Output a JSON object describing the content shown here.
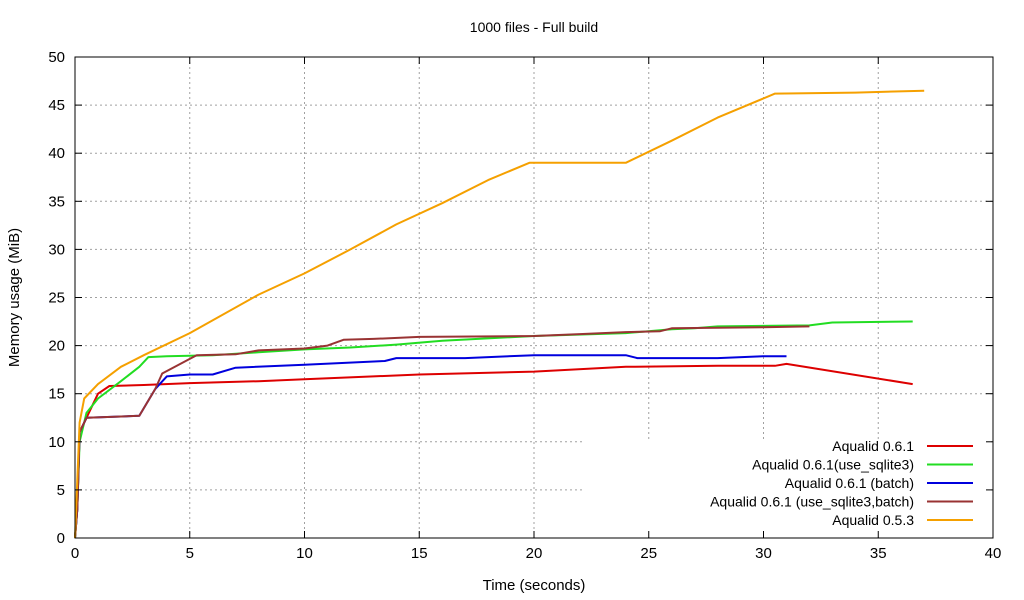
{
  "chart_data": {
    "type": "line",
    "title": "1000 files - Full build",
    "xlabel": "Time (seconds)",
    "ylabel": "Memory usage (MiB)",
    "xlim": [
      0,
      40
    ],
    "ylim": [
      0,
      50
    ],
    "xticks": [
      0,
      5,
      10,
      15,
      20,
      25,
      30,
      35,
      40
    ],
    "yticks": [
      0,
      5,
      10,
      15,
      20,
      25,
      30,
      35,
      40,
      45,
      50
    ],
    "grid": true,
    "legend_position": "bottom-right",
    "series": [
      {
        "name": "Aqualid 0.6.1",
        "color": "#dd0000",
        "points": [
          [
            0,
            0
          ],
          [
            0.1,
            3
          ],
          [
            0.2,
            11
          ],
          [
            0.5,
            12.5
          ],
          [
            1,
            15
          ],
          [
            1.5,
            15.8
          ],
          [
            3,
            15.9
          ],
          [
            5,
            16.1
          ],
          [
            8,
            16.3
          ],
          [
            10,
            16.5
          ],
          [
            13,
            16.8
          ],
          [
            15,
            17
          ],
          [
            20,
            17.3
          ],
          [
            24,
            17.8
          ],
          [
            28,
            17.9
          ],
          [
            30.5,
            17.9
          ],
          [
            31,
            18.1
          ],
          [
            36.5,
            16
          ]
        ]
      },
      {
        "name": "Aqualid 0.6.1(use_sqlite3)",
        "color": "#22dd22",
        "points": [
          [
            0,
            0
          ],
          [
            0.1,
            3
          ],
          [
            0.2,
            10
          ],
          [
            0.5,
            13
          ],
          [
            1,
            14.5
          ],
          [
            2,
            16.3
          ],
          [
            2.8,
            17.8
          ],
          [
            3.2,
            18.8
          ],
          [
            4,
            18.9
          ],
          [
            6,
            19
          ],
          [
            8,
            19.3
          ],
          [
            10,
            19.6
          ],
          [
            12,
            19.8
          ],
          [
            14,
            20.1
          ],
          [
            16,
            20.5
          ],
          [
            20,
            21
          ],
          [
            24,
            21.3
          ],
          [
            26,
            21.7
          ],
          [
            27,
            21.8
          ],
          [
            28,
            22
          ],
          [
            32,
            22.1
          ],
          [
            33,
            22.4
          ],
          [
            36.5,
            22.5
          ]
        ]
      },
      {
        "name": "Aqualid 0.6.1 (batch)",
        "color": "#0000dd",
        "points": [
          [
            0,
            0
          ],
          [
            0.1,
            3
          ],
          [
            0.2,
            11
          ],
          [
            0.5,
            12.5
          ],
          [
            2.8,
            12.7
          ],
          [
            3.5,
            15.5
          ],
          [
            4,
            16.8
          ],
          [
            5,
            17
          ],
          [
            6,
            17
          ],
          [
            7,
            17.7
          ],
          [
            10,
            18
          ],
          [
            13.5,
            18.4
          ],
          [
            14,
            18.7
          ],
          [
            17,
            18.7
          ],
          [
            20,
            19
          ],
          [
            24,
            19
          ],
          [
            24.5,
            18.7
          ],
          [
            28,
            18.7
          ],
          [
            30,
            18.9
          ],
          [
            31,
            18.9
          ]
        ]
      },
      {
        "name": "Aqualid 0.6.1 (use_sqlite3,batch)",
        "color": "#993333",
        "points": [
          [
            0,
            0
          ],
          [
            0.1,
            3
          ],
          [
            0.2,
            11
          ],
          [
            0.5,
            12.5
          ],
          [
            2.8,
            12.7
          ],
          [
            3.5,
            15.5
          ],
          [
            3.8,
            17.1
          ],
          [
            5.3,
            19
          ],
          [
            7,
            19.1
          ],
          [
            8,
            19.5
          ],
          [
            10,
            19.7
          ],
          [
            11,
            20
          ],
          [
            11.7,
            20.6
          ],
          [
            13,
            20.7
          ],
          [
            15,
            20.9
          ],
          [
            20,
            21
          ],
          [
            22,
            21.2
          ],
          [
            24,
            21.4
          ],
          [
            25.5,
            21.5
          ],
          [
            26,
            21.8
          ],
          [
            30,
            21.9
          ],
          [
            32,
            22
          ]
        ]
      },
      {
        "name": "Aqualid 0.5.3",
        "color": "#f5a000",
        "points": [
          [
            0,
            0
          ],
          [
            0.1,
            6
          ],
          [
            0.2,
            12
          ],
          [
            0.4,
            14.5
          ],
          [
            1,
            16
          ],
          [
            2,
            17.8
          ],
          [
            3,
            19
          ],
          [
            5,
            21.3
          ],
          [
            8,
            25.3
          ],
          [
            10,
            27.5
          ],
          [
            12,
            30
          ],
          [
            14,
            32.6
          ],
          [
            16,
            34.8
          ],
          [
            18,
            37.2
          ],
          [
            19.8,
            39
          ],
          [
            24,
            39
          ],
          [
            26,
            41.3
          ],
          [
            28,
            43.7
          ],
          [
            30.5,
            46.2
          ],
          [
            34,
            46.3
          ],
          [
            37,
            46.5
          ]
        ]
      }
    ]
  }
}
